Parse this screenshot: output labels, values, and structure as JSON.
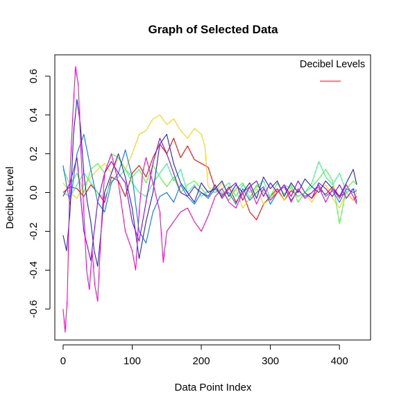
{
  "chart_data": {
    "type": "line",
    "title": "Graph of Selected Data",
    "xlabel": "Data Point Index",
    "ylabel": "Decibel Level",
    "xlim": [
      -12,
      445
    ],
    "ylim": [
      -0.76,
      0.71
    ],
    "xticks": [
      0,
      100,
      200,
      300,
      400
    ],
    "yticks": [
      -0.6,
      -0.4,
      -0.2,
      0.0,
      0.2,
      0.4,
      0.6
    ],
    "xtick_labels": [
      "0",
      "100",
      "200",
      "300",
      "400"
    ],
    "ytick_labels": [
      "-0.6",
      "-0.4",
      "-0.2",
      "0.0",
      "0.2",
      "0.4",
      "0.6"
    ],
    "grid": false,
    "legend": {
      "title": "Decibel Levels",
      "placement": "top-right",
      "entries": [
        {
          "color": "#ff5555"
        }
      ]
    },
    "series": [
      {
        "color": "#ff0000",
        "x": [
          0,
          10,
          20,
          30,
          40,
          50,
          60,
          70,
          80,
          90,
          100,
          110,
          120,
          130,
          140,
          150,
          160,
          170,
          180,
          190,
          200,
          210,
          220,
          230,
          240,
          250,
          260,
          270,
          280,
          290,
          300,
          310,
          320,
          330,
          340,
          350,
          360,
          370,
          380,
          390,
          400,
          410,
          420,
          425
        ],
        "y": [
          0.0,
          0.03,
          0.02,
          -0.02,
          0.04,
          0.0,
          -0.05,
          0.08,
          0.06,
          -0.02,
          0.1,
          0.14,
          0.08,
          0.18,
          0.25,
          0.2,
          0.28,
          0.18,
          0.24,
          0.17,
          0.15,
          0.13,
          0.02,
          -0.02,
          0.03,
          -0.05,
          0.0,
          -0.1,
          -0.14,
          -0.06,
          -0.02,
          0.02,
          -0.04,
          0.01,
          -0.02,
          0.0,
          -0.03,
          0.02,
          -0.01,
          0.03,
          -0.02,
          0.0,
          -0.04,
          -0.02
        ]
      },
      {
        "color": "#ffd000",
        "x": [
          0,
          10,
          20,
          30,
          40,
          50,
          60,
          70,
          80,
          90,
          100,
          110,
          120,
          130,
          140,
          150,
          160,
          170,
          180,
          190,
          200,
          205,
          210,
          220,
          230,
          240,
          250,
          260,
          270,
          280,
          290,
          300,
          310,
          320,
          330,
          340,
          350,
          360,
          370,
          380,
          390,
          400,
          410,
          420,
          425
        ],
        "y": [
          0.05,
          0.0,
          -0.03,
          0.04,
          0.08,
          0.12,
          0.15,
          0.1,
          0.18,
          0.12,
          0.2,
          0.3,
          0.32,
          0.38,
          0.4,
          0.35,
          0.38,
          0.32,
          0.28,
          0.33,
          0.3,
          0.24,
          0.03,
          0.0,
          0.05,
          -0.02,
          0.02,
          -0.08,
          -0.03,
          0.02,
          -0.06,
          -0.03,
          0.01,
          -0.04,
          0.03,
          -0.02,
          0.0,
          -0.05,
          0.02,
          0.04,
          -0.03,
          -0.08,
          0.0,
          -0.04,
          0.0
        ]
      },
      {
        "color": "#44ff33",
        "x": [
          0,
          10,
          20,
          30,
          40,
          50,
          60,
          70,
          80,
          90,
          100,
          110,
          120,
          130,
          140,
          150,
          160,
          170,
          180,
          190,
          200,
          210,
          220,
          230,
          240,
          250,
          260,
          270,
          280,
          290,
          300,
          310,
          320,
          330,
          340,
          350,
          360,
          370,
          380,
          390,
          400,
          410,
          420,
          425
        ],
        "y": [
          0.12,
          0.04,
          0.1,
          0.0,
          0.12,
          0.15,
          0.1,
          0.2,
          0.18,
          0.12,
          0.08,
          0.12,
          0.05,
          0.14,
          0.08,
          0.03,
          0.08,
          0.0,
          0.04,
          0.06,
          0.02,
          -0.02,
          0.03,
          0.0,
          -0.04,
          0.02,
          0.05,
          -0.03,
          0.04,
          0.0,
          -0.02,
          0.05,
          -0.01,
          0.04,
          -0.05,
          0.0,
          0.03,
          0.07,
          0.12,
          0.06,
          -0.16,
          0.02,
          0.06,
          0.04
        ]
      },
      {
        "color": "#22ff88",
        "x": [
          0,
          10,
          20,
          30,
          40,
          50,
          60,
          70,
          80,
          90,
          100,
          110,
          120,
          130,
          140,
          150,
          160,
          170,
          180,
          190,
          200,
          210,
          220,
          230,
          240,
          250,
          260,
          270,
          280,
          290,
          300,
          310,
          320,
          330,
          340,
          350,
          360,
          370,
          380,
          390,
          400,
          410,
          420,
          425
        ],
        "y": [
          0.0,
          -0.02,
          0.04,
          0.1,
          0.05,
          0.0,
          -0.03,
          0.06,
          0.08,
          0.12,
          0.05,
          0.0,
          -0.02,
          0.05,
          0.1,
          0.15,
          0.06,
          0.12,
          0.0,
          0.04,
          -0.02,
          0.01,
          0.0,
          0.02,
          0.05,
          -0.02,
          0.04,
          0.0,
          0.03,
          0.06,
          -0.03,
          0.0,
          0.04,
          0.02,
          -0.02,
          0.0,
          0.05,
          0.16,
          0.08,
          0.04,
          0.1,
          0.0,
          0.02,
          0.01
        ]
      },
      {
        "color": "#0077ff",
        "x": [
          0,
          10,
          20,
          30,
          40,
          50,
          60,
          70,
          80,
          90,
          100,
          110,
          120,
          130,
          140,
          150,
          160,
          170,
          180,
          190,
          200,
          210,
          220,
          230,
          240,
          250,
          260,
          270,
          280,
          290,
          300,
          310,
          320,
          330,
          340,
          350,
          360,
          370,
          380,
          390,
          400,
          410,
          420,
          425
        ],
        "y": [
          0.14,
          -0.06,
          0.2,
          0.3,
          0.12,
          -0.05,
          -0.1,
          0.05,
          0.1,
          0.22,
          0.08,
          -0.2,
          -0.26,
          -0.1,
          -0.02,
          0.0,
          -0.05,
          0.04,
          -0.02,
          -0.06,
          0.0,
          -0.03,
          0.02,
          -0.01,
          0.0,
          -0.06,
          0.02,
          -0.04,
          0.0,
          0.03,
          -0.06,
          0.0,
          0.03,
          -0.04,
          0.01,
          -0.02,
          0.0,
          0.04,
          -0.02,
          0.01,
          -0.05,
          0.02,
          0.0,
          0.01
        ]
      },
      {
        "color": "#2222cc",
        "x": [
          0,
          5,
          10,
          15,
          20,
          25,
          30,
          35,
          40,
          45,
          50,
          55,
          60,
          70,
          80,
          90,
          100,
          110,
          120,
          130,
          140,
          150,
          160,
          170,
          180,
          190,
          200,
          210,
          220,
          230,
          240,
          250,
          260,
          270,
          280,
          290,
          300,
          310,
          320,
          330,
          340,
          350,
          360,
          370,
          380,
          390,
          400,
          410,
          420,
          425
        ],
        "y": [
          -0.22,
          -0.3,
          -0.1,
          0.3,
          0.48,
          0.35,
          0.1,
          -0.05,
          -0.15,
          -0.3,
          -0.38,
          -0.2,
          0.0,
          0.1,
          0.2,
          0.08,
          -0.08,
          -0.34,
          -0.15,
          0.0,
          0.25,
          0.3,
          0.15,
          0.05,
          0.0,
          -0.05,
          0.05,
          0.0,
          0.02,
          0.06,
          -0.02,
          0.04,
          0.0,
          0.05,
          -0.03,
          0.08,
          0.02,
          0.06,
          -0.02,
          0.05,
          0.0,
          0.07,
          0.03,
          0.0,
          0.06,
          0.02,
          -0.02,
          0.05,
          0.12,
          0.04
        ]
      },
      {
        "color": "#8800ee",
        "x": [
          0,
          10,
          20,
          30,
          40,
          50,
          60,
          70,
          80,
          90,
          100,
          110,
          120,
          130,
          140,
          150,
          160,
          170,
          180,
          190,
          200,
          210,
          220,
          230,
          240,
          250,
          260,
          270,
          280,
          290,
          300,
          310,
          320,
          330,
          340,
          350,
          360,
          370,
          380,
          390,
          400,
          410,
          420,
          425
        ],
        "y": [
          -0.02,
          0.05,
          0.18,
          -0.2,
          -0.35,
          -0.05,
          0.1,
          0.16,
          0.1,
          0.05,
          -0.15,
          -0.25,
          -0.05,
          0.15,
          0.28,
          0.2,
          0.1,
          0.0,
          -0.02,
          0.03,
          0.0,
          -0.02,
          0.04,
          -0.03,
          0.02,
          0.05,
          -0.04,
          0.03,
          0.06,
          -0.02,
          0.05,
          0.0,
          0.04,
          -0.02,
          0.06,
          0.0,
          -0.03,
          0.05,
          0.02,
          -0.02,
          0.04,
          -0.03,
          0.02,
          -0.05
        ]
      },
      {
        "color": "#ff00cc",
        "x": [
          0,
          3,
          6,
          10,
          14,
          18,
          22,
          26,
          30,
          34,
          38,
          42,
          46,
          50,
          55,
          60,
          70,
          80,
          90,
          100,
          105,
          110,
          115,
          120,
          130,
          140,
          145,
          150,
          160,
          170,
          180,
          190,
          200,
          210,
          220,
          230,
          240,
          250,
          260,
          270,
          280,
          290,
          300,
          310,
          320,
          330,
          340,
          350,
          360,
          370,
          380,
          390,
          400,
          410,
          420,
          425
        ],
        "y": [
          -0.6,
          -0.72,
          -0.55,
          0.1,
          0.4,
          0.65,
          0.55,
          0.2,
          -0.1,
          -0.4,
          -0.5,
          -0.3,
          -0.48,
          -0.56,
          -0.2,
          0.1,
          0.2,
          0.05,
          -0.2,
          -0.3,
          -0.4,
          -0.1,
          0.1,
          0.18,
          0.05,
          -0.1,
          -0.36,
          -0.2,
          -0.15,
          -0.1,
          -0.08,
          -0.15,
          -0.2,
          -0.12,
          -0.02,
          0.02,
          -0.05,
          -0.08,
          0.0,
          0.03,
          -0.06,
          0.02,
          -0.04,
          0.0,
          0.04,
          -0.05,
          0.02,
          -0.03,
          0.0,
          0.03,
          -0.05,
          0.02,
          -0.03,
          0.04,
          -0.02,
          -0.06
        ]
      }
    ]
  }
}
